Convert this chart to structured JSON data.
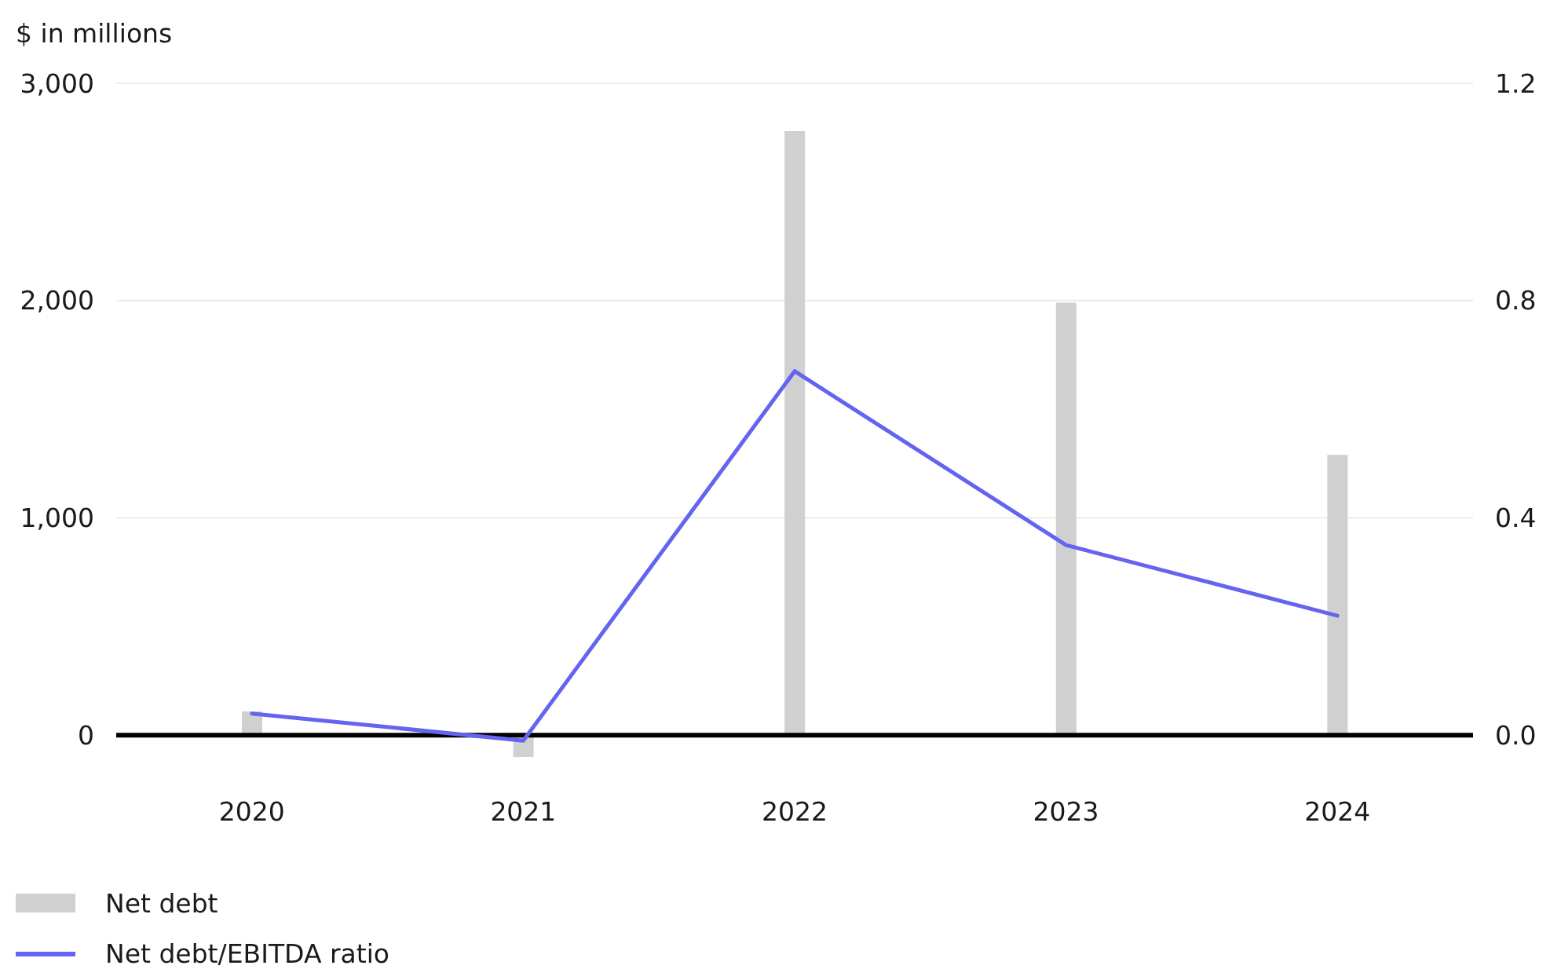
{
  "chart_data": {
    "type": "bar",
    "ylabel": "$ in millions",
    "categories": [
      "2020",
      "2021",
      "2022",
      "2023",
      "2024"
    ],
    "series": [
      {
        "name": "Net debt",
        "color": "#d0d0d0",
        "values": [
          110,
          -100,
          2780,
          1990,
          1290
        ]
      },
      {
        "name": "Net debt/EBITDA ratio",
        "type": "line",
        "axis": "y2",
        "color": "#6464f0",
        "values": [
          0.04,
          -0.01,
          0.67,
          0.35,
          0.22
        ]
      }
    ],
    "ylim": [
      -100,
      3000
    ],
    "yticks": [
      0,
      {
        "value": 1000,
        "label": "1,000"
      },
      {
        "value": 2000,
        "label": "2,000"
      },
      {
        "value": 3000,
        "label": "3,000"
      }
    ],
    "y2lim": [
      -0.04,
      1.2
    ],
    "y2ticks": [
      {
        "value": 0,
        "label": "0.0"
      },
      0.4,
      0.8,
      1.2
    ],
    "grid": "y",
    "legend": "bottom left"
  }
}
